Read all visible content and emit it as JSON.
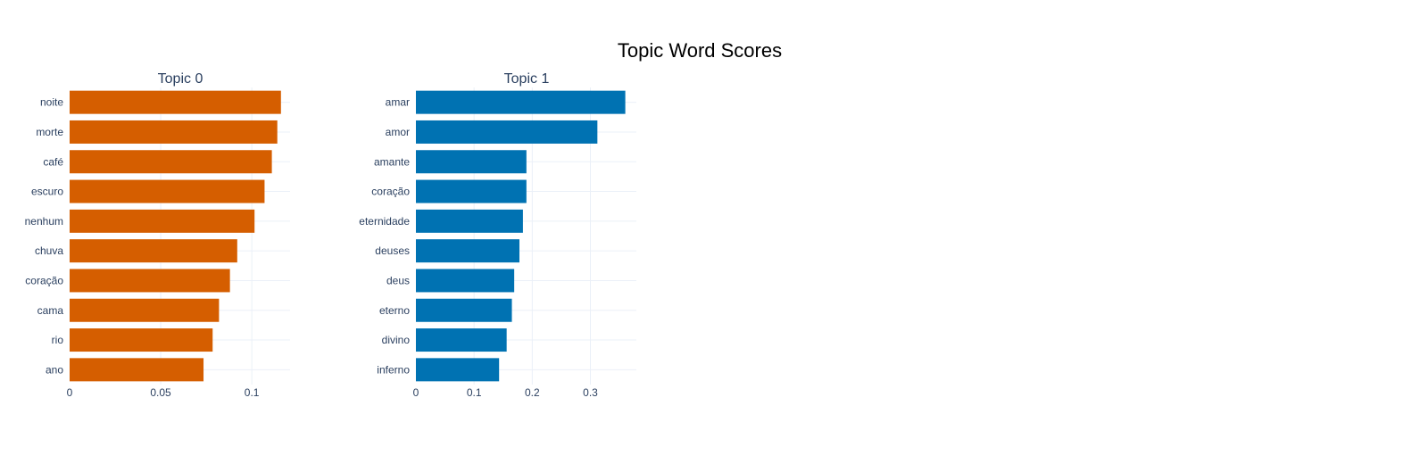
{
  "chart_data": {
    "type": "bar",
    "orientation": "horizontal",
    "title": "Topic Word Scores",
    "grid": true,
    "subplots": [
      {
        "title": "Topic 0",
        "color": "#D55E00",
        "categories": [
          "noite",
          "morte",
          "café",
          "escuro",
          "nenhum",
          "chuva",
          "coração",
          "cama",
          "rio",
          "ano"
        ],
        "values": [
          0.116,
          0.114,
          0.111,
          0.107,
          0.1015,
          0.092,
          0.088,
          0.082,
          0.0785,
          0.0735
        ],
        "xlim": [
          0,
          0.121
        ],
        "xticks": [
          0,
          0.05,
          0.1
        ],
        "xtick_labels": [
          "0",
          "0.05",
          "0.1"
        ]
      },
      {
        "title": "Topic 1",
        "color": "#0072B2",
        "categories": [
          "amar",
          "amor",
          "amante",
          "coração",
          "eternidade",
          "deuses",
          "deus",
          "eterno",
          "divino",
          "inferno"
        ],
        "values": [
          0.36,
          0.312,
          0.19,
          0.19,
          0.184,
          0.178,
          0.169,
          0.165,
          0.156,
          0.143
        ],
        "xlim": [
          0,
          0.379
        ],
        "xticks": [
          0,
          0.1,
          0.2,
          0.3
        ],
        "xtick_labels": [
          "0",
          "0.1",
          "0.2",
          "0.3"
        ]
      }
    ]
  }
}
